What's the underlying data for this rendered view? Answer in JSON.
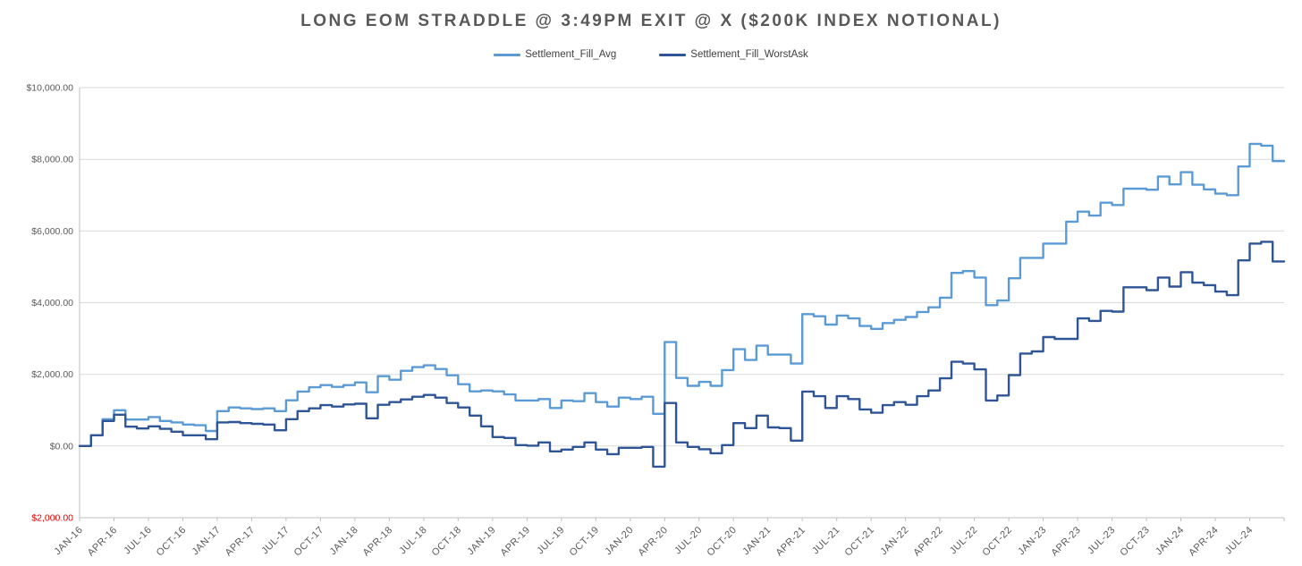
{
  "chart_data": {
    "type": "line",
    "line_style": "step",
    "title": "LONG EOM STRADDLE @ 3:49PM EXIT @ X ($200K INDEX NOTIONAL)",
    "legend_position": "top-center",
    "grid": true,
    "x_axis": {
      "start": "JAN-16",
      "end": "SEP-24",
      "interval": "monthly",
      "tick_label_every_n_months": 3,
      "tick_labels": [
        "JAN-16",
        "APR-16",
        "JUL-16",
        "OCT-16",
        "JAN-17",
        "APR-17",
        "JUL-17",
        "OCT-17",
        "JAN-18",
        "APR-18",
        "JUL-18",
        "OCT-18",
        "JAN-19",
        "APR-19",
        "JUL-19",
        "OCT-19",
        "JAN-20",
        "APR-20",
        "JUL-20",
        "OCT-20",
        "JAN-21",
        "APR-21",
        "JUL-21",
        "OCT-21",
        "JAN-22",
        "APR-22",
        "JUL-22",
        "OCT-22",
        "JAN-23",
        "APR-23",
        "JUL-23",
        "OCT-23",
        "JAN-24",
        "APR-24",
        "JUL-24"
      ]
    },
    "y_axis": {
      "min": -2000,
      "max": 10000,
      "step": 2000,
      "tick_labels_top_to_bottom": [
        "$10,000.00",
        "$8,000.00",
        "$6,000.00",
        "$4,000.00",
        "$2,000.00",
        "$0.00",
        "$2,000.00"
      ],
      "label_color": "#595959",
      "negative_label_color": "#E00000"
    },
    "series": [
      {
        "name": "Settlement_Fill_Avg",
        "color": "#5B9BD5",
        "values": [
          0,
          300,
          750,
          1000,
          740,
          740,
          810,
          700,
          660,
          600,
          580,
          420,
          975,
          1075,
          1050,
          1030,
          1050,
          975,
          1275,
          1520,
          1640,
          1700,
          1650,
          1700,
          1775,
          1500,
          1950,
          1850,
          2100,
          2200,
          2250,
          2150,
          1975,
          1725,
          1525,
          1550,
          1525,
          1440,
          1270,
          1270,
          1310,
          1060,
          1270,
          1250,
          1475,
          1225,
          1100,
          1350,
          1310,
          1375,
          900,
          2900,
          1900,
          1680,
          1790,
          1680,
          2120,
          2700,
          2400,
          2800,
          2550,
          2550,
          2300,
          3680,
          3620,
          3390,
          3640,
          3560,
          3350,
          3270,
          3430,
          3520,
          3600,
          3740,
          3870,
          4140,
          4830,
          4880,
          4700,
          3930,
          4060,
          4680,
          5250,
          5250,
          5650,
          5650,
          6260,
          6540,
          6430,
          6790,
          6725,
          7180,
          7180,
          7150,
          7520,
          7300,
          7640,
          7290,
          7160,
          7040,
          7000,
          7800,
          8430,
          8380,
          7950
        ]
      },
      {
        "name": "Settlement_Fill_WorstAsk",
        "color": "#2F5597",
        "values": [
          0,
          300,
          700,
          875,
          540,
          490,
          550,
          480,
          400,
          300,
          300,
          190,
          660,
          670,
          640,
          620,
          600,
          440,
          750,
          975,
          1050,
          1140,
          1100,
          1160,
          1180,
          775,
          1150,
          1225,
          1300,
          1375,
          1425,
          1350,
          1200,
          1075,
          850,
          550,
          250,
          225,
          25,
          10,
          100,
          -150,
          -100,
          -25,
          100,
          -100,
          -225,
          -50,
          -50,
          -25,
          -575,
          1200,
          100,
          -25,
          -90,
          -200,
          25,
          640,
          500,
          850,
          520,
          500,
          150,
          1520,
          1390,
          1060,
          1390,
          1310,
          1020,
          930,
          1140,
          1225,
          1150,
          1390,
          1550,
          1890,
          2350,
          2300,
          2140,
          1270,
          1410,
          1980,
          2580,
          2640,
          3040,
          2990,
          2990,
          3560,
          3490,
          3770,
          3750,
          4430,
          4430,
          4350,
          4700,
          4450,
          4850,
          4560,
          4490,
          4310,
          4210,
          5180,
          5650,
          5700,
          5150
        ]
      }
    ]
  },
  "colors": {
    "background": "#FFFFFF",
    "gridline": "#D9D9D9",
    "axis_line": "#BFBFBF",
    "title_text": "#595959",
    "legend_text": "#404040",
    "x_label_text": "#595959"
  }
}
